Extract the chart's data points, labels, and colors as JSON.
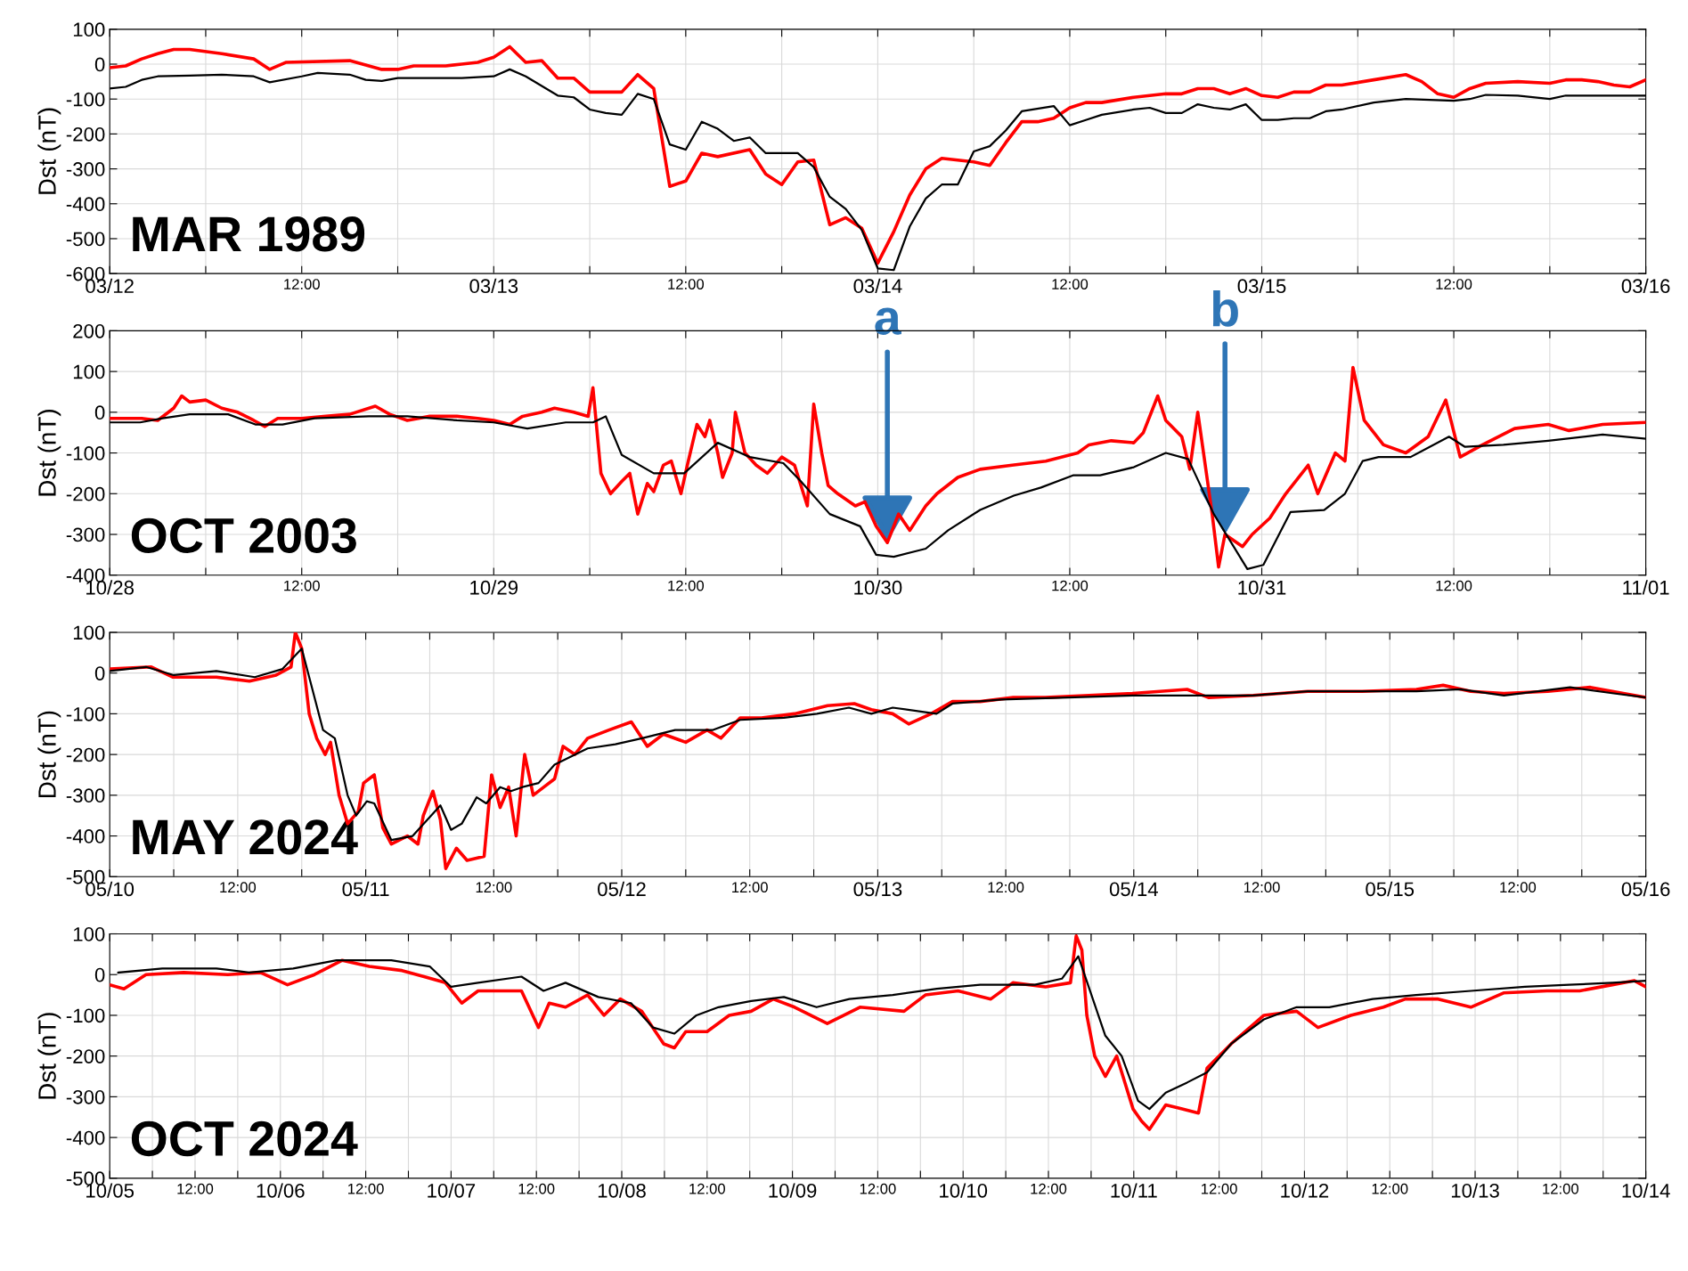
{
  "chart_data": [
    {
      "type": "line",
      "ylabel": "Dst (nT)",
      "annotations": [
        "MAR 1989"
      ],
      "grid": true,
      "xlim": [
        "1989-03-12T00:00",
        "1989-03-16T00:00"
      ],
      "ylim": [
        -600,
        100
      ],
      "yticks": [
        -600,
        -500,
        -400,
        -300,
        -200,
        -100,
        0,
        100
      ],
      "xticks": [
        {
          "value": "1989-03-12T00:00",
          "label": "03/12"
        },
        {
          "value": "1989-03-12T06:00",
          "label": null
        },
        {
          "value": "1989-03-12T12:00",
          "label": "12:00"
        },
        {
          "value": "1989-03-12T18:00",
          "label": null
        },
        {
          "value": "1989-03-13T00:00",
          "label": "03/13"
        },
        {
          "value": "1989-03-13T06:00",
          "label": null
        },
        {
          "value": "1989-03-13T12:00",
          "label": "12:00"
        },
        {
          "value": "1989-03-13T18:00",
          "label": null
        },
        {
          "value": "1989-03-14T00:00",
          "label": "03/14"
        },
        {
          "value": "1989-03-14T06:00",
          "label": null
        },
        {
          "value": "1989-03-14T12:00",
          "label": "12:00"
        },
        {
          "value": "1989-03-14T18:00",
          "label": null
        },
        {
          "value": "1989-03-15T00:00",
          "label": "03/15"
        },
        {
          "value": "1989-03-15T06:00",
          "label": null
        },
        {
          "value": "1989-03-15T12:00",
          "label": "12:00"
        },
        {
          "value": "1989-03-15T18:00",
          "label": null
        },
        {
          "value": "1989-03-16T00:00",
          "label": "03/16"
        }
      ],
      "series": [
        {
          "color": "#ff0000",
          "x": [
            "1989-03-12T00:00",
            "1989-03-12T01:00",
            "1989-03-12T02:00",
            "1989-03-12T03:00",
            "1989-03-12T04:00",
            "1989-03-12T05:00",
            "1989-03-12T07:00",
            "1989-03-12T09:00",
            "1989-03-12T10:00",
            "1989-03-12T11:00",
            "1989-03-12T15:00",
            "1989-03-12T17:00",
            "1989-03-12T18:00",
            "1989-03-12T19:00",
            "1989-03-12T21:00",
            "1989-03-12T22:00",
            "1989-03-12T23:00",
            "1989-03-13T00:00",
            "1989-03-13T01:00",
            "1989-03-13T02:00",
            "1989-03-13T03:00",
            "1989-03-13T04:00",
            "1989-03-13T05:00",
            "1989-03-13T06:00",
            "1989-03-13T08:00",
            "1989-03-13T09:00",
            "1989-03-13T10:00",
            "1989-03-13T11:00",
            "1989-03-13T12:00",
            "1989-03-13T13:00",
            "1989-03-13T14:00",
            "1989-03-13T16:00",
            "1989-03-13T17:00",
            "1989-03-13T18:00",
            "1989-03-13T19:00",
            "1989-03-13T20:00",
            "1989-03-13T21:00",
            "1989-03-13T22:00",
            "1989-03-13T23:00",
            "1989-03-14T00:00",
            "1989-03-14T01:00",
            "1989-03-14T02:00",
            "1989-03-14T03:00",
            "1989-03-14T04:00",
            "1989-03-14T06:00",
            "1989-03-14T07:00",
            "1989-03-14T08:00",
            "1989-03-14T09:00",
            "1989-03-14T10:00",
            "1989-03-14T11:00",
            "1989-03-14T12:00",
            "1989-03-14T13:00",
            "1989-03-14T14:00",
            "1989-03-14T16:00",
            "1989-03-14T18:00",
            "1989-03-14T19:00",
            "1989-03-14T20:00",
            "1989-03-14T21:00",
            "1989-03-14T22:00",
            "1989-03-14T23:00",
            "1989-03-15T00:00",
            "1989-03-15T01:00",
            "1989-03-15T02:00",
            "1989-03-15T03:00",
            "1989-03-15T04:00",
            "1989-03-15T05:00",
            "1989-03-15T07:00",
            "1989-03-15T09:00",
            "1989-03-15T10:00",
            "1989-03-15T11:00",
            "1989-03-15T12:00",
            "1989-03-15T13:00",
            "1989-03-15T14:00",
            "1989-03-15T16:00",
            "1989-03-15T18:00",
            "1989-03-15T19:00",
            "1989-03-15T20:00",
            "1989-03-15T21:00",
            "1989-03-15T22:00",
            "1989-03-15T23:00",
            "1989-03-16T00:00"
          ],
          "values": [
            -10,
            -5,
            15,
            30,
            42,
            42,
            30,
            15,
            -15,
            5,
            10,
            -15,
            -15,
            -5,
            -5,
            0,
            5,
            20,
            50,
            5,
            10,
            -40,
            -40,
            -80,
            -80,
            -30,
            -70,
            -350,
            -335,
            -255,
            -265,
            -245,
            -315,
            -345,
            -280,
            -275,
            -460,
            -440,
            -470,
            -570,
            -480,
            -375,
            -300,
            -270,
            -280,
            -290,
            -225,
            -165,
            -165,
            -155,
            -125,
            -110,
            -110,
            -95,
            -85,
            -85,
            -70,
            -70,
            -85,
            -70,
            -90,
            -95,
            -80,
            -80,
            -60,
            -60,
            -45,
            -30,
            -50,
            -85,
            -95,
            -70,
            -55,
            -50,
            -55,
            -45,
            -45,
            -50,
            -60,
            -65,
            -45
          ]
        },
        {
          "color": "#000000",
          "x": [
            "1989-03-12T00:00",
            "1989-03-12T01:00",
            "1989-03-12T02:00",
            "1989-03-12T03:00",
            "1989-03-12T05:00",
            "1989-03-12T07:00",
            "1989-03-12T09:00",
            "1989-03-12T10:00",
            "1989-03-12T12:00",
            "1989-03-12T13:00",
            "1989-03-12T15:00",
            "1989-03-12T16:00",
            "1989-03-12T17:00",
            "1989-03-12T18:00",
            "1989-03-12T22:00",
            "1989-03-13T00:00",
            "1989-03-13T01:00",
            "1989-03-13T02:00",
            "1989-03-13T04:00",
            "1989-03-13T05:00",
            "1989-03-13T06:00",
            "1989-03-13T07:00",
            "1989-03-13T08:00",
            "1989-03-13T09:00",
            "1989-03-13T10:00",
            "1989-03-13T11:00",
            "1989-03-13T12:00",
            "1989-03-13T13:00",
            "1989-03-13T14:00",
            "1989-03-13T15:00",
            "1989-03-13T16:00",
            "1989-03-13T17:00",
            "1989-03-13T19:00",
            "1989-03-13T20:00",
            "1989-03-13T21:00",
            "1989-03-13T22:00",
            "1989-03-13T23:00",
            "1989-03-14T00:00",
            "1989-03-14T01:00",
            "1989-03-14T02:00",
            "1989-03-14T03:00",
            "1989-03-14T04:00",
            "1989-03-14T05:00",
            "1989-03-14T06:00",
            "1989-03-14T07:00",
            "1989-03-14T08:00",
            "1989-03-14T09:00",
            "1989-03-14T11:00",
            "1989-03-14T12:00",
            "1989-03-14T13:00",
            "1989-03-14T14:00",
            "1989-03-14T16:00",
            "1989-03-14T17:00",
            "1989-03-14T18:00",
            "1989-03-14T19:00",
            "1989-03-14T20:00",
            "1989-03-14T21:00",
            "1989-03-14T22:00",
            "1989-03-14T23:00",
            "1989-03-15T00:00",
            "1989-03-15T01:00",
            "1989-03-15T02:00",
            "1989-03-15T03:00",
            "1989-03-15T04:00",
            "1989-03-15T05:00",
            "1989-03-15T07:00",
            "1989-03-15T09:00",
            "1989-03-15T12:00",
            "1989-03-15T13:00",
            "1989-03-15T14:00",
            "1989-03-15T16:00",
            "1989-03-15T18:00",
            "1989-03-15T19:00",
            "1989-03-15T21:00",
            "1989-03-16T00:00"
          ],
          "values": [
            -70,
            -65,
            -45,
            -35,
            -33,
            -30,
            -35,
            -52,
            -35,
            -25,
            -30,
            -45,
            -48,
            -40,
            -40,
            -35,
            -15,
            -35,
            -90,
            -95,
            -130,
            -140,
            -145,
            -85,
            -100,
            -230,
            -245,
            -165,
            -185,
            -220,
            -210,
            -255,
            -255,
            -295,
            -380,
            -415,
            -475,
            -585,
            -590,
            -465,
            -385,
            -345,
            -345,
            -250,
            -235,
            -190,
            -135,
            -120,
            -175,
            -160,
            -145,
            -130,
            -125,
            -140,
            -140,
            -115,
            -125,
            -130,
            -115,
            -160,
            -160,
            -155,
            -155,
            -135,
            -130,
            -110,
            -100,
            -105,
            -100,
            -88,
            -90,
            -100,
            -90,
            -90,
            -90
          ]
        }
      ]
    },
    {
      "type": "line",
      "ylabel": "Dst (nT)",
      "grid": true,
      "xlim": [
        "2003-10-28T00:00",
        "2003-11-01T00:00"
      ],
      "ylim": [
        -400,
        200
      ],
      "annotations": [
        "OCT 2003",
        {
          "text": "a",
          "x": "2003-10-30T00:36",
          "y": -320
        },
        {
          "text": "b",
          "x": "2003-10-30T21:42",
          "y": -300
        }
      ],
      "yticks": [
        -400,
        -300,
        -200,
        -100,
        0,
        100,
        200
      ],
      "xticks": [
        {
          "value": "2003-10-28T00:00",
          "label": "10/28"
        },
        {
          "value": "2003-10-28T06:00",
          "label": null
        },
        {
          "value": "2003-10-28T12:00",
          "label": "12:00"
        },
        {
          "value": "2003-10-28T18:00",
          "label": null
        },
        {
          "value": "2003-10-29T00:00",
          "label": "10/29"
        },
        {
          "value": "2003-10-29T06:00",
          "label": null
        },
        {
          "value": "2003-10-29T12:00",
          "label": "12:00"
        },
        {
          "value": "2003-10-29T18:00",
          "label": null
        },
        {
          "value": "2003-10-30T00:00",
          "label": "10/30"
        },
        {
          "value": "2003-10-30T06:00",
          "label": null
        },
        {
          "value": "2003-10-30T12:00",
          "label": "12:00"
        },
        {
          "value": "2003-10-30T18:00",
          "label": null
        },
        {
          "value": "2003-10-31T00:00",
          "label": "10/31"
        },
        {
          "value": "2003-10-31T06:00",
          "label": null
        },
        {
          "value": "2003-10-31T12:00",
          "label": "12:00"
        },
        {
          "value": "2003-10-31T18:00",
          "label": null
        },
        {
          "value": "2003-11-01T00:00",
          "label": "11/01"
        }
      ],
      "series": [
        {
          "color": "#ff0000",
          "x": [
            "2003-10-28T00:00",
            "2003-10-28T02:00",
            "2003-10-28T03:00",
            "2003-10-28T04:00",
            "2003-10-28T04:30",
            "2003-10-28T05:00",
            "2003-10-28T06:00",
            "2003-10-28T07:00",
            "2003-10-28T08:00",
            "2003-10-28T09:00",
            "2003-10-28T09:42",
            "2003-10-28T10:30",
            "2003-10-28T12:00",
            "2003-10-28T13:30",
            "2003-10-28T15:00",
            "2003-10-28T16:36",
            "2003-10-28T17:30",
            "2003-10-28T18:36",
            "2003-10-28T20:00",
            "2003-10-28T21:42",
            "2003-10-28T23:00",
            "2003-10-29T00:00",
            "2003-10-29T01:00",
            "2003-10-29T01:48",
            "2003-10-29T03:00",
            "2003-10-29T03:48",
            "2003-10-29T05:00",
            "2003-10-29T05:54",
            "2003-10-29T06:12",
            "2003-10-29T06:42",
            "2003-10-29T07:18",
            "2003-10-29T08:00",
            "2003-10-29T08:30",
            "2003-10-29T09:00",
            "2003-10-29T09:36",
            "2003-10-29T10:00",
            "2003-10-29T10:36",
            "2003-10-29T11:06",
            "2003-10-29T11:42",
            "2003-10-29T12:06",
            "2003-10-29T12:42",
            "2003-10-29T13:12",
            "2003-10-29T13:30",
            "2003-10-29T14:00",
            "2003-10-29T14:18",
            "2003-10-29T14:54",
            "2003-10-29T15:06",
            "2003-10-29T15:42",
            "2003-10-29T16:24",
            "2003-10-29T17:06",
            "2003-10-29T18:00",
            "2003-10-29T18:48",
            "2003-10-29T19:36",
            "2003-10-29T20:00",
            "2003-10-29T20:30",
            "2003-10-29T20:54",
            "2003-10-29T21:30",
            "2003-10-29T22:36",
            "2003-10-29T23:12",
            "2003-10-29T23:54",
            "2003-10-30T00:36",
            "2003-10-30T01:18",
            "2003-10-30T02:00",
            "2003-10-30T03:00",
            "2003-10-30T03:42",
            "2003-10-30T05:00",
            "2003-10-30T06:24",
            "2003-10-30T08:24",
            "2003-10-30T10:30",
            "2003-10-30T12:30",
            "2003-10-30T13:12",
            "2003-10-30T14:36",
            "2003-10-30T16:00",
            "2003-10-30T16:36",
            "2003-10-30T17:30",
            "2003-10-30T18:00",
            "2003-10-30T19:00",
            "2003-10-30T19:30",
            "2003-10-30T20:00",
            "2003-10-30T20:54",
            "2003-10-30T21:18",
            "2003-10-30T21:42",
            "2003-10-30T22:48",
            "2003-10-30T23:24",
            "2003-10-31T00:30",
            "2003-10-31T01:30",
            "2003-10-31T02:54",
            "2003-10-31T03:30",
            "2003-10-31T04:36",
            "2003-10-31T05:12",
            "2003-10-31T05:42",
            "2003-10-31T06:24",
            "2003-10-31T07:36",
            "2003-10-31T09:00",
            "2003-10-31T10:24",
            "2003-10-31T11:30",
            "2003-10-31T12:24",
            "2003-10-31T13:48",
            "2003-10-31T15:48",
            "2003-10-31T17:54",
            "2003-10-31T19:12",
            "2003-10-31T21:18",
            "2003-11-01T00:00"
          ],
          "values": [
            -15,
            -15,
            -20,
            10,
            40,
            25,
            30,
            10,
            0,
            -20,
            -35,
            -15,
            -15,
            -10,
            -5,
            15,
            -5,
            -20,
            -10,
            -10,
            -15,
            -20,
            -30,
            -10,
            0,
            10,
            0,
            -10,
            60,
            -150,
            -200,
            -170,
            -150,
            -250,
            -175,
            -195,
            -130,
            -120,
            -200,
            -130,
            -30,
            -60,
            -20,
            -100,
            -160,
            -100,
            0,
            -100,
            -130,
            -150,
            -110,
            -130,
            -230,
            20,
            -100,
            -180,
            -200,
            -230,
            -220,
            -280,
            -320,
            -250,
            -290,
            -230,
            -200,
            -160,
            -140,
            -130,
            -120,
            -100,
            -80,
            -70,
            -75,
            -50,
            40,
            -20,
            -60,
            -140,
            0,
            -250,
            -380,
            -300,
            -330,
            -300,
            -260,
            -200,
            -130,
            -200,
            -100,
            -120,
            110,
            -20,
            -80,
            -100,
            -60,
            30,
            -110,
            -80,
            -40,
            -30,
            -45,
            -30,
            -25
          ]
        },
        {
          "color": "#000000",
          "x": [
            "2003-10-28T00:00",
            "2003-10-28T01:54",
            "2003-10-28T03:18",
            "2003-10-28T05:00",
            "2003-10-28T07:24",
            "2003-10-28T09:06",
            "2003-10-28T10:48",
            "2003-10-28T12:48",
            "2003-10-28T16:12",
            "2003-10-28T18:36",
            "2003-10-28T21:42",
            "2003-10-29T00:00",
            "2003-10-29T02:06",
            "2003-10-29T04:30",
            "2003-10-29T06:12",
            "2003-10-29T07:00",
            "2003-10-29T08:00",
            "2003-10-29T10:00",
            "2003-10-29T11:54",
            "2003-10-29T14:00",
            "2003-10-29T16:00",
            "2003-10-29T18:06",
            "2003-10-29T19:12",
            "2003-10-29T21:00",
            "2003-10-29T22:54",
            "2003-10-29T23:54",
            "2003-10-30T01:00",
            "2003-10-30T03:00",
            "2003-10-30T04:24",
            "2003-10-30T06:24",
            "2003-10-30T08:30",
            "2003-10-30T10:12",
            "2003-10-30T12:12",
            "2003-10-30T13:54",
            "2003-10-30T16:00",
            "2003-10-30T18:00",
            "2003-10-30T19:24",
            "2003-10-30T21:00",
            "2003-10-30T23:06",
            "2003-10-31T00:06",
            "2003-10-31T01:48",
            "2003-10-31T03:54",
            "2003-10-31T05:12",
            "2003-10-31T06:18",
            "2003-10-31T07:18",
            "2003-10-31T09:18",
            "2003-10-31T11:42",
            "2003-10-31T12:42",
            "2003-10-31T15:06",
            "2003-10-31T17:54",
            "2003-10-31T21:18",
            "2003-11-01T00:00"
          ],
          "values": [
            -25,
            -25,
            -15,
            -5,
            -5,
            -30,
            -30,
            -15,
            -10,
            -10,
            -20,
            -25,
            -40,
            -25,
            -25,
            -10,
            -105,
            -150,
            -150,
            -75,
            -110,
            -125,
            -170,
            -250,
            -280,
            -350,
            -355,
            -335,
            -290,
            -240,
            -205,
            -185,
            -155,
            -155,
            -135,
            -100,
            -115,
            -250,
            -385,
            -375,
            -245,
            -240,
            -200,
            -120,
            -110,
            -110,
            -60,
            -85,
            -80,
            -70,
            -55,
            -65
          ]
        }
      ]
    },
    {
      "type": "line",
      "ylabel": "Dst (nT)",
      "annotations": [
        "MAY 2024"
      ],
      "grid": true,
      "xlim": [
        "2024-05-10T00:00",
        "2024-05-16T00:00"
      ],
      "ylim": [
        -500,
        100
      ],
      "yticks": [
        -500,
        -400,
        -300,
        -200,
        -100,
        0,
        100
      ],
      "xticks": [
        {
          "value": "2024-05-10T00:00",
          "label": "05/10"
        },
        {
          "value": "2024-05-10T06:00",
          "label": null
        },
        {
          "value": "2024-05-10T12:00",
          "label": "12:00"
        },
        {
          "value": "2024-05-10T18:00",
          "label": null
        },
        {
          "value": "2024-05-11T00:00",
          "label": "05/11"
        },
        {
          "value": "2024-05-11T06:00",
          "label": null
        },
        {
          "value": "2024-05-11T12:00",
          "label": "12:00"
        },
        {
          "value": "2024-05-11T18:00",
          "label": null
        },
        {
          "value": "2024-05-12T00:00",
          "label": "05/12"
        },
        {
          "value": "2024-05-12T06:00",
          "label": null
        },
        {
          "value": "2024-05-12T12:00",
          "label": "12:00"
        },
        {
          "value": "2024-05-12T18:00",
          "label": null
        },
        {
          "value": "2024-05-13T00:00",
          "label": "05/13"
        },
        {
          "value": "2024-05-13T06:00",
          "label": null
        },
        {
          "value": "2024-05-13T12:00",
          "label": "12:00"
        },
        {
          "value": "2024-05-13T18:00",
          "label": null
        },
        {
          "value": "2024-05-14T00:00",
          "label": "05/14"
        },
        {
          "value": "2024-05-14T06:00",
          "label": null
        },
        {
          "value": "2024-05-14T12:00",
          "label": "12:00"
        },
        {
          "value": "2024-05-14T18:00",
          "label": null
        },
        {
          "value": "2024-05-15T00:00",
          "label": "05/15"
        },
        {
          "value": "2024-05-15T06:00",
          "label": null
        },
        {
          "value": "2024-05-15T12:00",
          "label": "12:00"
        },
        {
          "value": "2024-05-15T18:00",
          "label": null
        },
        {
          "value": "2024-05-16T00:00",
          "label": "05/16"
        }
      ],
      "series": [
        {
          "color": "#ff0000",
          "x": [
            "2024-05-10T00:00",
            "2024-05-10T03:54",
            "2024-05-10T05:54",
            "2024-05-10T10:00",
            "2024-05-10T13:06",
            "2024-05-10T15:36",
            "2024-05-10T17:00",
            "2024-05-10T17:24",
            "2024-05-10T18:00",
            "2024-05-10T18:42",
            "2024-05-10T19:24",
            "2024-05-10T20:12",
            "2024-05-10T20:42",
            "2024-05-10T21:30",
            "2024-05-10T22:18",
            "2024-05-10T23:18",
            "2024-05-10T23:48",
            "2024-05-11T00:48",
            "2024-05-11T01:36",
            "2024-05-11T02:24",
            "2024-05-11T03:54",
            "2024-05-11T04:54",
            "2024-05-11T05:24",
            "2024-05-11T06:18",
            "2024-05-11T07:00",
            "2024-05-11T07:30",
            "2024-05-11T08:30",
            "2024-05-11T09:30",
            "2024-05-11T11:06",
            "2024-05-11T11:48",
            "2024-05-11T12:36",
            "2024-05-11T13:24",
            "2024-05-11T14:06",
            "2024-05-11T14:54",
            "2024-05-11T15:42",
            "2024-05-11T16:42",
            "2024-05-11T17:42",
            "2024-05-11T18:30",
            "2024-05-11T19:36",
            "2024-05-11T20:48",
            "2024-05-11T22:48",
            "2024-05-12T00:54",
            "2024-05-12T02:24",
            "2024-05-12T03:54",
            "2024-05-12T06:00",
            "2024-05-12T08:00",
            "2024-05-12T09:18",
            "2024-05-12T11:06",
            "2024-05-12T13:06",
            "2024-05-12T16:12",
            "2024-05-12T19:18",
            "2024-05-12T21:48",
            "2024-05-12T23:24",
            "2024-05-13T01:24",
            "2024-05-13T02:54",
            "2024-05-13T05:00",
            "2024-05-13T07:00",
            "2024-05-13T09:36",
            "2024-05-13T12:42",
            "2024-05-13T15:42",
            "2024-05-13T19:48",
            "2024-05-13T23:54",
            "2024-05-14T05:00",
            "2024-05-14T07:00",
            "2024-05-14T11:12",
            "2024-05-14T16:18",
            "2024-05-14T21:24",
            "2024-05-15T02:30",
            "2024-05-15T05:00",
            "2024-05-15T07:36",
            "2024-05-15T10:42",
            "2024-05-15T14:48",
            "2024-05-15T18:48",
            "2024-05-15T21:54",
            "2024-05-16T00:00"
          ],
          "values": [
            10,
            15,
            -10,
            -10,
            -20,
            -5,
            15,
            100,
            60,
            -100,
            -160,
            -200,
            -170,
            -300,
            -370,
            -340,
            -270,
            -250,
            -380,
            -420,
            -400,
            -420,
            -350,
            -290,
            -360,
            -480,
            -430,
            -460,
            -450,
            -250,
            -330,
            -280,
            -400,
            -200,
            -300,
            -280,
            -260,
            -180,
            -200,
            -160,
            -140,
            -120,
            -180,
            -150,
            -170,
            -140,
            -160,
            -110,
            -110,
            -100,
            -80,
            -75,
            -90,
            -100,
            -125,
            -100,
            -70,
            -70,
            -60,
            -60,
            -55,
            -50,
            -40,
            -60,
            -55,
            -45,
            -45,
            -40,
            -30,
            -45,
            -50,
            -45,
            -35,
            -50,
            -60
          ]
        },
        {
          "color": "#000000",
          "x": [
            "2024-05-10T00:00",
            "2024-05-10T03:24",
            "2024-05-10T06:00",
            "2024-05-10T10:00",
            "2024-05-10T13:36",
            "2024-05-10T16:12",
            "2024-05-10T18:00",
            "2024-05-10T20:00",
            "2024-05-10T21:06",
            "2024-05-10T22:18",
            "2024-05-10T23:06",
            "2024-05-11T00:06",
            "2024-05-11T00:48",
            "2024-05-11T02:24",
            "2024-05-11T04:24",
            "2024-05-11T07:00",
            "2024-05-11T08:00",
            "2024-05-11T09:00",
            "2024-05-11T10:24",
            "2024-05-11T11:18",
            "2024-05-11T12:36",
            "2024-05-11T13:36",
            "2024-05-11T14:42",
            "2024-05-11T16:12",
            "2024-05-11T17:42",
            "2024-05-11T20:48",
            "2024-05-11T23:24",
            "2024-05-12T01:54",
            "2024-05-12T05:00",
            "2024-05-12T08:30",
            "2024-05-12T11:06",
            "2024-05-12T15:12",
            "2024-05-12T18:18",
            "2024-05-12T21:18",
            "2024-05-12T23:24",
            "2024-05-13T01:24",
            "2024-05-13T05:30",
            "2024-05-13T07:00",
            "2024-05-13T11:36",
            "2024-05-13T17:48",
            "2024-05-13T23:54",
            "2024-05-14T06:00",
            "2024-05-14T11:12",
            "2024-05-14T16:18",
            "2024-05-14T22:24",
            "2024-05-15T02:30",
            "2024-05-15T06:36",
            "2024-05-15T10:42",
            "2024-05-15T16:54",
            "2024-05-15T21:00",
            "2024-05-16T00:00"
          ],
          "values": [
            5,
            15,
            -5,
            5,
            -10,
            10,
            60,
            -140,
            -160,
            -300,
            -350,
            -315,
            -320,
            -410,
            -400,
            -325,
            -385,
            -370,
            -305,
            -320,
            -280,
            -290,
            -280,
            -270,
            -225,
            -185,
            -175,
            -160,
            -140,
            -140,
            -115,
            -110,
            -100,
            -85,
            -100,
            -85,
            -100,
            -75,
            -65,
            -60,
            -55,
            -55,
            -55,
            -45,
            -45,
            -45,
            -40,
            -55,
            -35,
            -50,
            -60
          ]
        }
      ]
    },
    {
      "type": "line",
      "ylabel": "Dst (nT)",
      "annotations": [
        "OCT 2024"
      ],
      "grid": true,
      "xlim": [
        "2024-10-05T00:00",
        "2024-10-14T00:00"
      ],
      "ylim": [
        -500,
        100
      ],
      "yticks": [
        -500,
        -400,
        -300,
        -200,
        -100,
        0,
        100
      ],
      "xticks": [
        {
          "value": "2024-10-05T00:00",
          "label": "10/05"
        },
        {
          "value": "2024-10-05T06:00",
          "label": null
        },
        {
          "value": "2024-10-05T12:00",
          "label": "12:00"
        },
        {
          "value": "2024-10-05T18:00",
          "label": null
        },
        {
          "value": "2024-10-06T00:00",
          "label": "10/06"
        },
        {
          "value": "2024-10-06T06:00",
          "label": null
        },
        {
          "value": "2024-10-06T12:00",
          "label": "12:00"
        },
        {
          "value": "2024-10-06T18:00",
          "label": null
        },
        {
          "value": "2024-10-07T00:00",
          "label": "10/07"
        },
        {
          "value": "2024-10-07T06:00",
          "label": null
        },
        {
          "value": "2024-10-07T12:00",
          "label": "12:00"
        },
        {
          "value": "2024-10-07T18:00",
          "label": null
        },
        {
          "value": "2024-10-08T00:00",
          "label": "10/08"
        },
        {
          "value": "2024-10-08T06:00",
          "label": null
        },
        {
          "value": "2024-10-08T12:00",
          "label": "12:00"
        },
        {
          "value": "2024-10-08T18:00",
          "label": null
        },
        {
          "value": "2024-10-09T00:00",
          "label": "10/09"
        },
        {
          "value": "2024-10-09T06:00",
          "label": null
        },
        {
          "value": "2024-10-09T12:00",
          "label": "12:00"
        },
        {
          "value": "2024-10-09T18:00",
          "label": null
        },
        {
          "value": "2024-10-10T00:00",
          "label": "10/10"
        },
        {
          "value": "2024-10-10T06:00",
          "label": null
        },
        {
          "value": "2024-10-10T12:00",
          "label": "12:00"
        },
        {
          "value": "2024-10-10T18:00",
          "label": null
        },
        {
          "value": "2024-10-11T00:00",
          "label": "10/11"
        },
        {
          "value": "2024-10-11T06:00",
          "label": null
        },
        {
          "value": "2024-10-11T12:00",
          "label": "12:00"
        },
        {
          "value": "2024-10-11T18:00",
          "label": null
        },
        {
          "value": "2024-10-12T00:00",
          "label": "10/12"
        },
        {
          "value": "2024-10-12T06:00",
          "label": null
        },
        {
          "value": "2024-10-12T12:00",
          "label": "12:00"
        },
        {
          "value": "2024-10-12T18:00",
          "label": null
        },
        {
          "value": "2024-10-13T00:00",
          "label": "10/13"
        },
        {
          "value": "2024-10-13T06:00",
          "label": null
        },
        {
          "value": "2024-10-13T12:00",
          "label": "12:00"
        },
        {
          "value": "2024-10-13T18:00",
          "label": null
        },
        {
          "value": "2024-10-14T00:00",
          "label": "10/14"
        }
      ],
      "series": [
        {
          "color": "#ff0000",
          "x": [
            "2024-10-05T00:00",
            "2024-10-05T02:00",
            "2024-10-05T05:06",
            "2024-10-05T10:24",
            "2024-10-05T16:36",
            "2024-10-05T21:12",
            "2024-10-06T01:00",
            "2024-10-06T04:48",
            "2024-10-06T08:42",
            "2024-10-06T12:30",
            "2024-10-06T17:06",
            "2024-10-06T20:12",
            "2024-10-06T23:12",
            "2024-10-07T01:30",
            "2024-10-07T03:48",
            "2024-10-07T09:54",
            "2024-10-07T12:18",
            "2024-10-07T13:48",
            "2024-10-07T16:06",
            "2024-10-07T19:12",
            "2024-10-07T21:30",
            "2024-10-07T23:48",
            "2024-10-08T02:48",
            "2024-10-08T05:54",
            "2024-10-08T07:24",
            "2024-10-08T09:00",
            "2024-10-08T12:00",
            "2024-10-08T15:06",
            "2024-10-08T18:12",
            "2024-10-08T21:18",
            "2024-10-09T00:18",
            "2024-10-09T04:54",
            "2024-10-09T09:30",
            "2024-10-09T15:42",
            "2024-10-09T18:42",
            "2024-10-09T23:18",
            "2024-10-10T03:54",
            "2024-10-10T07:00",
            "2024-10-10T11:36",
            "2024-10-10T15:06",
            "2024-10-10T15:54",
            "2024-10-10T16:42",
            "2024-10-10T17:24",
            "2024-10-10T18:30",
            "2024-10-10T20:00",
            "2024-10-10T21:36",
            "2024-10-10T23:54",
            "2024-10-11T01:06",
            "2024-10-11T02:12",
            "2024-10-11T04:30",
            "2024-10-11T06:48",
            "2024-10-11T09:06",
            "2024-10-11T10:18",
            "2024-10-11T13:42",
            "2024-10-11T18:18",
            "2024-10-11T22:54",
            "2024-10-12T01:54",
            "2024-10-12T06:30",
            "2024-10-12T11:06",
            "2024-10-12T14:12",
            "2024-10-12T18:48",
            "2024-10-12T23:24",
            "2024-10-13T04:00",
            "2024-10-13T10:06",
            "2024-10-13T14:42",
            "2024-10-13T19:18",
            "2024-10-13T22:24",
            "2024-10-14T00:00"
          ],
          "values": [
            -25,
            -35,
            0,
            5,
            0,
            5,
            -25,
            0,
            35,
            20,
            10,
            -5,
            -20,
            -70,
            -40,
            -40,
            -130,
            -70,
            -80,
            -50,
            -100,
            -60,
            -90,
            -170,
            -180,
            -140,
            -140,
            -100,
            -90,
            -60,
            -80,
            -120,
            -80,
            -90,
            -50,
            -40,
            -60,
            -20,
            -30,
            -20,
            95,
            60,
            -100,
            -200,
            -250,
            -200,
            -330,
            -360,
            -380,
            -320,
            -330,
            -340,
            -230,
            -170,
            -100,
            -90,
            -130,
            -100,
            -80,
            -60,
            -60,
            -80,
            -45,
            -40,
            -40,
            -25,
            -15,
            -30
          ]
        },
        {
          "color": "#000000",
          "x": [
            "2024-10-05T01:12",
            "2024-10-05T07:24",
            "2024-10-05T15:00",
            "2024-10-05T19:36",
            "2024-10-06T01:48",
            "2024-10-06T07:54",
            "2024-10-06T15:36",
            "2024-10-06T21:00",
            "2024-10-07T00:00",
            "2024-10-07T03:48",
            "2024-10-07T09:54",
            "2024-10-07T13:00",
            "2024-10-07T16:06",
            "2024-10-07T20:42",
            "2024-10-08T01:18",
            "2024-10-08T04:24",
            "2024-10-08T07:24",
            "2024-10-08T10:30",
            "2024-10-08T13:36",
            "2024-10-08T18:12",
            "2024-10-08T22:48",
            "2024-10-09T03:24",
            "2024-10-09T08:00",
            "2024-10-09T14:06",
            "2024-10-09T20:18",
            "2024-10-10T02:24",
            "2024-10-10T10:06",
            "2024-10-10T13:54",
            "2024-10-10T16:12",
            "2024-10-10T20:00",
            "2024-10-10T22:18",
            "2024-10-11T00:36",
            "2024-10-11T02:12",
            "2024-10-11T04:30",
            "2024-10-11T07:30",
            "2024-10-11T10:18",
            "2024-10-11T13:42",
            "2024-10-11T18:18",
            "2024-10-11T22:54",
            "2024-10-12T03:30",
            "2024-10-12T09:36",
            "2024-10-12T15:42",
            "2024-10-12T23:24",
            "2024-10-13T07:00",
            "2024-10-13T13:12",
            "2024-10-13T19:18",
            "2024-10-14T00:00"
          ],
          "values": [
            5,
            15,
            15,
            5,
            15,
            35,
            35,
            20,
            -30,
            -20,
            -5,
            -40,
            -20,
            -55,
            -70,
            -130,
            -145,
            -100,
            -80,
            -65,
            -55,
            -80,
            -60,
            -50,
            -35,
            -25,
            -25,
            -10,
            45,
            -150,
            -200,
            -310,
            -330,
            -290,
            -265,
            -240,
            -170,
            -110,
            -80,
            -80,
            -60,
            -50,
            -40,
            -30,
            -25,
            -20,
            -15
          ]
        }
      ]
    }
  ]
}
